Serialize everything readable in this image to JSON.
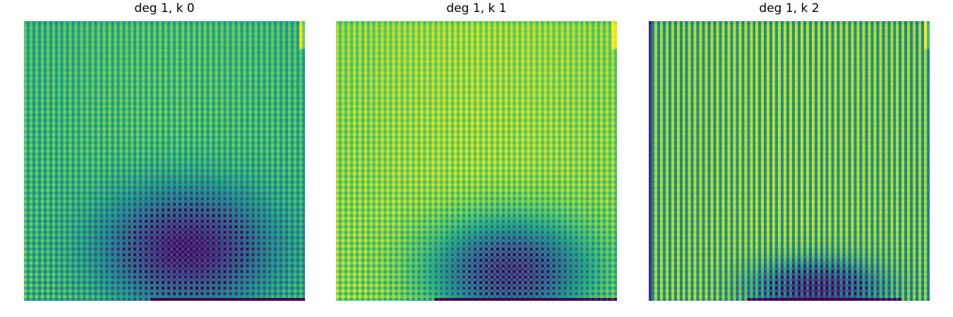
{
  "figure": {
    "colormap": "viridis",
    "colors": {
      "low": "#440154",
      "mid": "#21918c",
      "high": "#fde725",
      "background": "#ffffff"
    }
  },
  "chart_data": [
    {
      "type": "heatmap",
      "title": "deg 1, k 0",
      "xlabel": "",
      "ylabel": "",
      "grid": false,
      "axes_visible": false,
      "resolution": [
        100,
        100
      ],
      "colormap": "viridis",
      "value_range": [
        0,
        1
      ],
      "pattern": {
        "base_level": 0.64,
        "column_checker_amplitude": 0.1,
        "row_checker_amplitude": 0.06,
        "dark_region": {
          "center": [
            0.58,
            0.82
          ],
          "spread": [
            0.21,
            0.15
          ],
          "depth": 0.66
        },
        "bottom_band": {
          "from": 0.45,
          "to": 1.0,
          "rows": 1,
          "depth": 0.6
        },
        "bright_corner": "top-right"
      }
    },
    {
      "type": "heatmap",
      "title": "deg 1, k 1",
      "xlabel": "",
      "ylabel": "",
      "grid": false,
      "axes_visible": false,
      "resolution": [
        100,
        100
      ],
      "colormap": "viridis",
      "value_range": [
        0,
        1
      ],
      "pattern": {
        "base_level": 0.8,
        "column_checker_amplitude": 0.08,
        "row_checker_amplitude": 0.05,
        "dark_region": {
          "center": [
            0.62,
            0.9
          ],
          "spread": [
            0.2,
            0.13
          ],
          "depth": 0.7
        },
        "bottom_band": {
          "from": 0.35,
          "to": 1.0,
          "rows": 1,
          "depth": 0.6
        },
        "bright_corner": "top-right"
      }
    },
    {
      "type": "heatmap",
      "title": "deg 1, k 2",
      "xlabel": "",
      "ylabel": "",
      "grid": false,
      "axes_visible": false,
      "resolution": [
        100,
        100
      ],
      "colormap": "viridis",
      "value_range": [
        0,
        1
      ],
      "pattern": {
        "base_level": 0.66,
        "column_checker_amplitude": 0.2,
        "row_checker_amplitude": 0.03,
        "dark_region": {
          "center": [
            0.6,
            0.96
          ],
          "spread": [
            0.16,
            0.07
          ],
          "depth": 0.6
        },
        "bottom_band": {
          "from": 0.35,
          "to": 0.9,
          "rows": 1,
          "depth": 0.6
        },
        "dark_left_edge": true,
        "bright_corner": "top-right"
      }
    }
  ]
}
